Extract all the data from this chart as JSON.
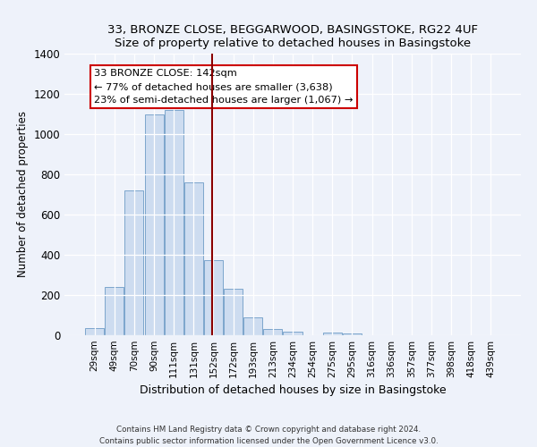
{
  "title1": "33, BRONZE CLOSE, BEGGARWOOD, BASINGSTOKE, RG22 4UF",
  "title2": "Size of property relative to detached houses in Basingstoke",
  "xlabel": "Distribution of detached houses by size in Basingstoke",
  "ylabel": "Number of detached properties",
  "bar_labels": [
    "29sqm",
    "49sqm",
    "70sqm",
    "90sqm",
    "111sqm",
    "131sqm",
    "152sqm",
    "172sqm",
    "193sqm",
    "213sqm",
    "234sqm",
    "254sqm",
    "275sqm",
    "295sqm",
    "316sqm",
    "336sqm",
    "357sqm",
    "377sqm",
    "398sqm",
    "418sqm",
    "439sqm"
  ],
  "bar_values": [
    35,
    240,
    720,
    1100,
    1120,
    760,
    375,
    230,
    90,
    30,
    20,
    0,
    15,
    8,
    0,
    0,
    0,
    0,
    0,
    0,
    0
  ],
  "bar_color": "#cddcf0",
  "bar_edge_color": "#7ca6cc",
  "vline_x": 5.92,
  "vline_color": "#8b0000",
  "annotation_title": "33 BRONZE CLOSE: 142sqm",
  "annotation_line1": "← 77% of detached houses are smaller (3,638)",
  "annotation_line2": "23% of semi-detached houses are larger (1,067) →",
  "annotation_box_color": "white",
  "annotation_box_edge": "#cc0000",
  "ylim": [
    0,
    1400
  ],
  "yticks": [
    0,
    200,
    400,
    600,
    800,
    1000,
    1200,
    1400
  ],
  "footer1": "Contains HM Land Registry data © Crown copyright and database right 2024.",
  "footer2": "Contains public sector information licensed under the Open Government Licence v3.0.",
  "bg_color": "#eef2fa"
}
